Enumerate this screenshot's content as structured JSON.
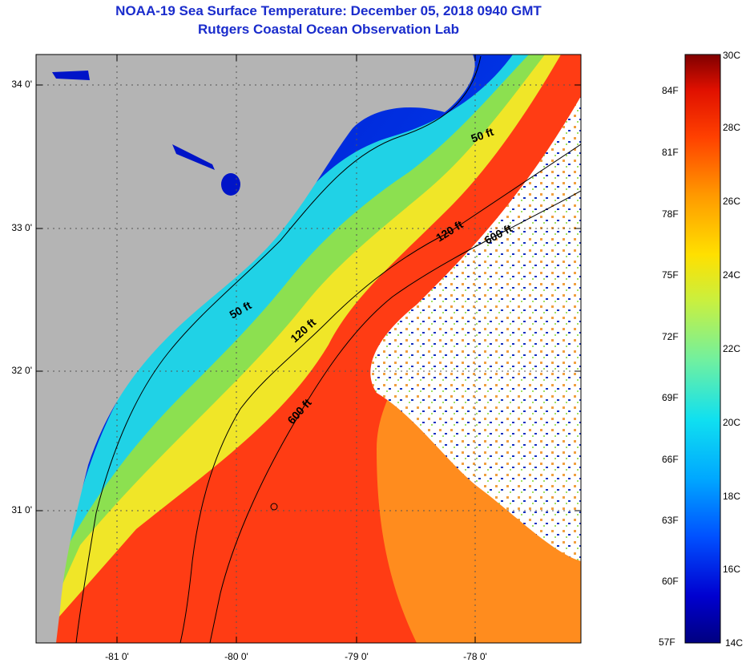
{
  "header": {
    "title": "NOAA-19 Sea Surface Temperature:  December 05, 2018 0940 GMT",
    "subtitle": "Rutgers Coastal Ocean Observation Lab"
  },
  "map": {
    "lat_labels": [
      "34 0'",
      "33 0'",
      "32 0'",
      "31 0'"
    ],
    "lon_labels": [
      "-81 0'",
      "-80 0'",
      "-79 0'",
      "-78 0'"
    ],
    "contours": [
      {
        "label": "50 ft"
      },
      {
        "label": "50 ft"
      },
      {
        "label": "120 ft"
      },
      {
        "label": "120 ft"
      },
      {
        "label": "600 ft"
      },
      {
        "label": "600 ft"
      }
    ],
    "colors": {
      "land": "#b4b4b4",
      "cloud": "#ffffff",
      "deep_blue": "#0014c8",
      "blue": "#0050ff",
      "cyan": "#20d2e6",
      "green": "#8ce050",
      "yellow": "#f0e628",
      "orange": "#ff8c1e",
      "red": "#ff3c14"
    }
  },
  "colorbar": {
    "fahrenheit": [
      "84F",
      "81F",
      "78F",
      "75F",
      "72F",
      "69F",
      "66F",
      "63F",
      "60F",
      "57F"
    ],
    "celsius": [
      "30C",
      "28C",
      "26C",
      "24C",
      "22C",
      "20C",
      "18C",
      "16C",
      "14C"
    ],
    "stops": [
      "#000080",
      "#0000d0",
      "#0050ff",
      "#00a8ff",
      "#10e0f0",
      "#70f0a0",
      "#c8f040",
      "#ffe000",
      "#ff9a00",
      "#ff4000",
      "#e01000",
      "#800000"
    ]
  }
}
